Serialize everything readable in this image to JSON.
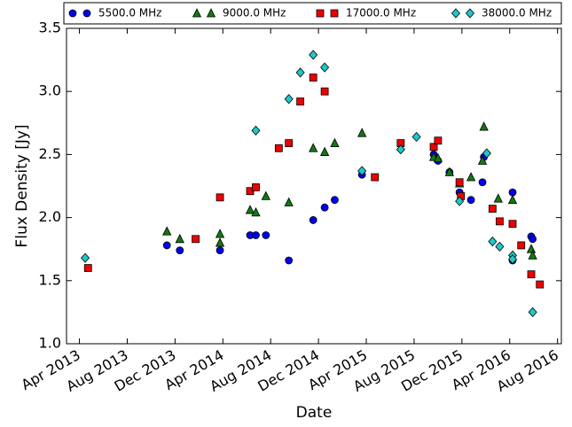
{
  "chart_data": {
    "type": "scatter",
    "xlabel": "Date",
    "ylabel": "Flux Density [Jy]",
    "xlim": [
      2013.16,
      2016.61
    ],
    "ylim": [
      1,
      3.5
    ],
    "xticks": [
      {
        "value": 2013.25,
        "label": "Apr 2013"
      },
      {
        "value": 2013.5833,
        "label": "Aug 2013"
      },
      {
        "value": 2013.9167,
        "label": "Dec 2013"
      },
      {
        "value": 2014.25,
        "label": "Apr 2014"
      },
      {
        "value": 2014.5833,
        "label": "Aug 2014"
      },
      {
        "value": 2014.9167,
        "label": "Dec 2014"
      },
      {
        "value": 2015.25,
        "label": "Apr 2015"
      },
      {
        "value": 2015.5833,
        "label": "Aug 2015"
      },
      {
        "value": 2015.9167,
        "label": "Dec 2015"
      },
      {
        "value": 2016.25,
        "label": "Apr 2016"
      },
      {
        "value": 2016.5833,
        "label": "Aug 2016"
      }
    ],
    "yticks": [
      {
        "value": 1,
        "label": "1.0"
      },
      1.5,
      {
        "value": 2,
        "label": "2.0"
      },
      2.5,
      {
        "value": 3,
        "label": "3.0"
      },
      3.5
    ],
    "legend": "top",
    "series": [
      {
        "name": "5500.0 MHz",
        "color": "#0000ee",
        "marker": "circle",
        "x": [
          2013.86,
          2013.95,
          2014.23,
          2014.44,
          2014.48,
          2014.55,
          2014.71,
          2014.88,
          2014.96,
          2015.03,
          2015.22,
          2015.72,
          2015.75,
          2015.83,
          2015.9,
          2015.98,
          2016.06,
          2016.07,
          2016.27,
          2016.27,
          2016.4,
          2016.41
        ],
        "values": [
          1.78,
          1.74,
          1.74,
          1.86,
          1.86,
          1.86,
          1.66,
          1.98,
          2.08,
          2.14,
          2.34,
          2.5,
          2.45,
          2.36,
          2.2,
          2.14,
          2.28,
          2.48,
          2.2,
          1.66,
          1.85,
          1.83
        ]
      },
      {
        "name": "9000.0 MHz",
        "color": "#117a11",
        "marker": "triangle",
        "x": [
          2013.86,
          2013.95,
          2014.23,
          2014.23,
          2014.44,
          2014.48,
          2014.55,
          2014.71,
          2014.88,
          2014.96,
          2015.03,
          2015.22,
          2015.72,
          2015.75,
          2015.83,
          2015.9,
          2015.98,
          2016.06,
          2016.07,
          2016.17,
          2016.27,
          2016.4,
          2016.41
        ],
        "values": [
          1.89,
          1.83,
          1.87,
          1.8,
          2.06,
          2.04,
          2.17,
          2.12,
          2.55,
          2.52,
          2.59,
          2.67,
          2.48,
          2.47,
          2.36,
          2.27,
          2.32,
          2.45,
          2.72,
          2.15,
          2.14,
          1.75,
          1.7
        ]
      },
      {
        "name": "17000.0 MHz",
        "color": "#ee0000",
        "marker": "square",
        "x": [
          2013.31,
          2014.06,
          2014.23,
          2014.44,
          2014.48,
          2014.64,
          2014.71,
          2014.79,
          2014.88,
          2014.96,
          2015.31,
          2015.49,
          2015.72,
          2015.75,
          2015.9,
          2015.91,
          2016.13,
          2016.18,
          2016.27,
          2016.33,
          2016.4,
          2016.46
        ],
        "values": [
          1.6,
          1.83,
          2.16,
          2.21,
          2.24,
          2.55,
          2.59,
          2.92,
          3.11,
          3.0,
          2.32,
          2.59,
          2.56,
          2.61,
          2.28,
          2.17,
          2.07,
          1.97,
          1.95,
          1.78,
          1.55,
          1.47
        ]
      },
      {
        "name": "38000.0 MHz",
        "color": "#1ec8c8",
        "marker": "diamond",
        "x": [
          2013.29,
          2014.48,
          2014.71,
          2014.79,
          2014.88,
          2014.96,
          2015.22,
          2015.49,
          2015.6,
          2015.9,
          2016.09,
          2016.13,
          2016.18,
          2016.27,
          2016.27,
          2016.41
        ],
        "values": [
          1.68,
          2.69,
          2.94,
          3.15,
          3.29,
          3.19,
          2.37,
          2.54,
          2.64,
          2.13,
          2.51,
          1.81,
          1.77,
          1.7,
          1.67,
          1.25
        ]
      }
    ]
  }
}
